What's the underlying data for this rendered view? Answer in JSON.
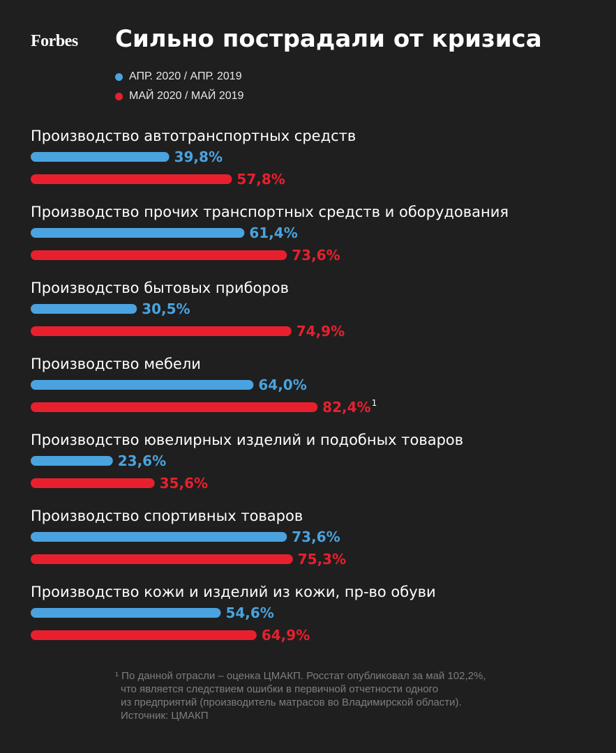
{
  "logo": "Forbes",
  "colors": {
    "background": "#1f1f1f",
    "blue": "#4aa3df",
    "red": "#e8202e"
  },
  "chart_data": {
    "type": "bar",
    "orientation": "horizontal",
    "title": "Сильно пострадали от кризиса",
    "categories": [
      "Производство автотранспортных средств",
      "Производство прочих транспортных средств и оборудования",
      "Производство бытовых приборов",
      "Производство мебели",
      "Производство ювелирных изделий и подобных товаров",
      "Производство спортивных товаров",
      "Производство кожи и изделий из кожи, пр-во обуви"
    ],
    "series": [
      {
        "name": "АПР. 2020 / АПР. 2019",
        "color": "#4aa3df",
        "values": [
          39.8,
          61.4,
          30.5,
          64.0,
          23.6,
          73.6,
          54.6
        ],
        "labels": [
          "39,8%",
          "61,4%",
          "30,5%",
          "64,0%",
          "23,6%",
          "73,6%",
          "54,6%"
        ]
      },
      {
        "name": "МАЙ 2020 / МАЙ 2019",
        "color": "#e8202e",
        "values": [
          57.8,
          73.6,
          74.9,
          82.4,
          35.6,
          75.3,
          64.9
        ],
        "labels": [
          "57,8%",
          "73,6%",
          "74,9%",
          "82,4%",
          "35,6%",
          "75,3%",
          "64,9%"
        ]
      }
    ],
    "annotations": [
      {
        "category_index": 3,
        "series_index": 1,
        "text": "1"
      }
    ],
    "xlim": [
      0,
      100
    ]
  },
  "footnote": {
    "lines": [
      "¹ По данной отрасли – оценка ЦМАКП. Росстат опубликовал за май 102,2%,",
      "что является следствием ошибки в первичной отчетности одного",
      "из предприятий (производитель матрасов во Владимирской области).",
      "Источник: ЦМАКП"
    ]
  }
}
